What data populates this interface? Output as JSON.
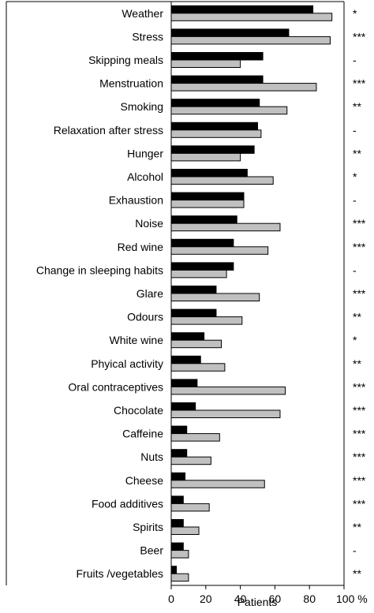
{
  "chart_data": {
    "type": "bar",
    "orientation": "horizontal",
    "categories": [
      "Weather",
      "Stress",
      "Skipping meals",
      "Menstruation",
      "Smoking",
      "Relaxation after stress",
      "Hunger",
      "Alcohol",
      "Exhaustion",
      "Noise",
      "Red wine",
      "Change in sleeping habits",
      "Glare",
      "Odours",
      "White wine",
      "Phyical activity",
      "Oral contraceptives",
      "Chocolate",
      "Caffeine",
      "Nuts",
      "Cheese",
      "Food additives",
      "Spirits",
      "Beer",
      "Fruits /vegetables"
    ],
    "series": [
      {
        "color": "#000000",
        "values": [
          82,
          68,
          53,
          53,
          51,
          50,
          48,
          44,
          42,
          38,
          36,
          36,
          26,
          26,
          19,
          17,
          15,
          14,
          9,
          9,
          8,
          7,
          7,
          7,
          3
        ]
      },
      {
        "color": "#c0c0c0",
        "values": [
          93,
          92,
          40,
          84,
          67,
          52,
          40,
          59,
          42,
          63,
          56,
          32,
          51,
          41,
          29,
          31,
          66,
          63,
          28,
          23,
          54,
          22,
          16,
          10,
          10
        ]
      }
    ],
    "significance": [
      "*",
      "***",
      "-",
      "***",
      "**",
      "-",
      "**",
      "*",
      "-",
      "***",
      "***",
      "-",
      "***",
      "**",
      "*",
      "**",
      "***",
      "***",
      "***",
      "***",
      "***",
      "***",
      "**",
      "-",
      "**"
    ],
    "xlabel": "Patients",
    "xticks": [
      "0",
      "20",
      "40",
      "60",
      "80",
      "100 %"
    ],
    "xlim": [
      0,
      100
    ],
    "grid": false
  }
}
